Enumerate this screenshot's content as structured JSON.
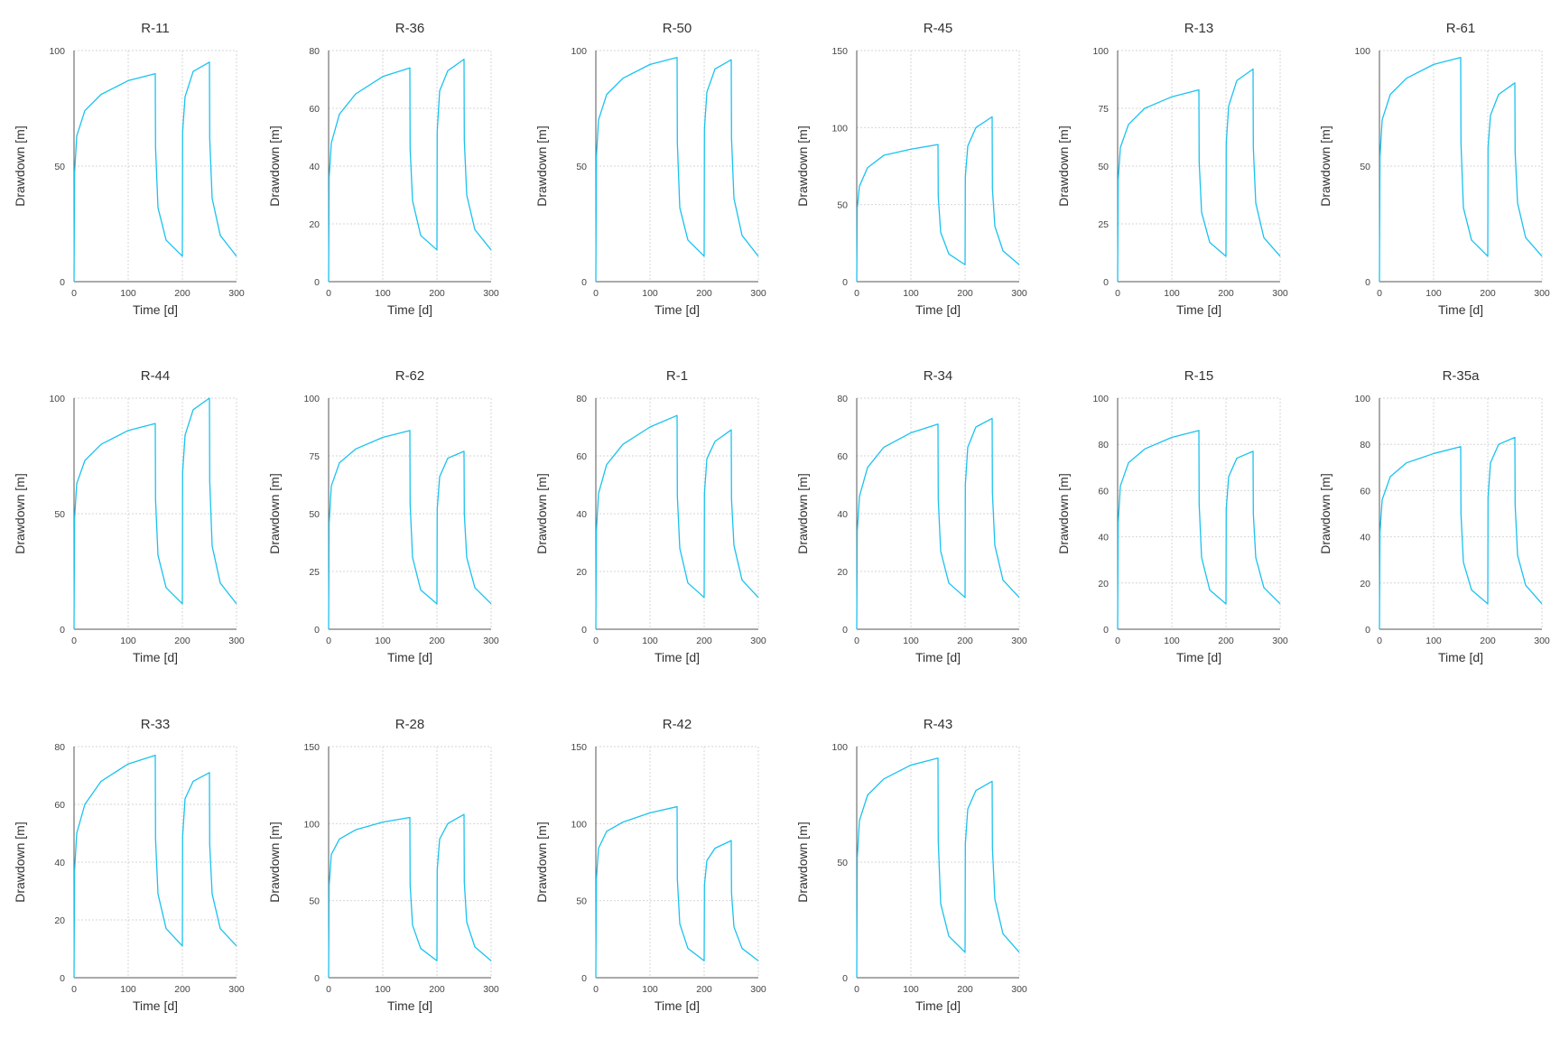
{
  "figure": {
    "line_color": "#1ac2ef",
    "grid": true,
    "layout": "3 rows x 6 columns"
  },
  "chart_data": [
    {
      "type": "line",
      "title": "R-11",
      "xlabel": "Time [d]",
      "ylabel": "Drawdown [m]",
      "xlim": [
        0,
        300
      ],
      "ylim": [
        0,
        100
      ],
      "xticks": [
        0,
        100,
        200,
        300
      ],
      "yticks": [
        0,
        50,
        100
      ],
      "series": [
        {
          "x": [
            0,
            1,
            5,
            20,
            50,
            100,
            150,
            150.5,
            155,
            170,
            200,
            200.5,
            205,
            220,
            250,
            250.5,
            255,
            270,
            300
          ],
          "y": [
            0,
            47,
            63,
            74,
            81,
            87,
            90,
            58,
            32,
            18,
            11,
            65,
            80,
            91,
            95,
            62,
            36,
            20,
            11
          ]
        }
      ]
    },
    {
      "type": "line",
      "title": "R-36",
      "xlabel": "Time [d]",
      "ylabel": "Drawdown [m]",
      "xlim": [
        0,
        300
      ],
      "ylim": [
        0,
        80
      ],
      "xticks": [
        0,
        100,
        200,
        300
      ],
      "yticks": [
        0,
        20,
        40,
        60,
        80
      ],
      "series": [
        {
          "x": [
            0,
            1,
            5,
            20,
            50,
            100,
            150,
            150.5,
            155,
            170,
            200,
            200.5,
            205,
            220,
            250,
            250.5,
            255,
            270,
            300
          ],
          "y": [
            0,
            36,
            48,
            58,
            65,
            71,
            74,
            46,
            28,
            16,
            11,
            52,
            66,
            73,
            77,
            49,
            30,
            18,
            11
          ]
        }
      ]
    },
    {
      "type": "line",
      "title": "R-50",
      "xlabel": "Time [d]",
      "ylabel": "Drawdown [m]",
      "xlim": [
        0,
        300
      ],
      "ylim": [
        0,
        100
      ],
      "xticks": [
        0,
        100,
        200,
        300
      ],
      "yticks": [
        0,
        50,
        100
      ],
      "series": [
        {
          "x": [
            0,
            1,
            5,
            20,
            50,
            100,
            150,
            150.5,
            155,
            170,
            200,
            200.5,
            205,
            220,
            250,
            250.5,
            255,
            270,
            300
          ],
          "y": [
            0,
            54,
            70,
            81,
            88,
            94,
            97,
            60,
            32,
            18,
            11,
            66,
            82,
            92,
            96,
            62,
            36,
            20,
            11
          ]
        }
      ]
    },
    {
      "type": "line",
      "title": "R-45",
      "xlabel": "Time [d]",
      "ylabel": "Drawdown [m]",
      "xlim": [
        0,
        300
      ],
      "ylim": [
        0,
        150
      ],
      "xticks": [
        0,
        100,
        200,
        300
      ],
      "yticks": [
        0,
        50,
        100,
        150
      ],
      "series": [
        {
          "x": [
            0,
            1,
            5,
            20,
            50,
            100,
            150,
            150.5,
            155,
            170,
            200,
            200.5,
            205,
            220,
            250,
            250.5,
            255,
            270,
            300
          ],
          "y": [
            0,
            48,
            62,
            74,
            82,
            86,
            89,
            55,
            32,
            18,
            11,
            68,
            88,
            100,
            107,
            60,
            36,
            20,
            11
          ]
        }
      ]
    },
    {
      "type": "line",
      "title": "R-13",
      "xlabel": "Time [d]",
      "ylabel": "Drawdown [m]",
      "xlim": [
        0,
        300
      ],
      "ylim": [
        0,
        100
      ],
      "xticks": [
        0,
        100,
        200,
        300
      ],
      "yticks": [
        0,
        25,
        50,
        75,
        100
      ],
      "series": [
        {
          "x": [
            0,
            1,
            5,
            20,
            50,
            100,
            150,
            150.5,
            155,
            170,
            200,
            200.5,
            205,
            220,
            250,
            250.5,
            255,
            270,
            300
          ],
          "y": [
            0,
            44,
            58,
            68,
            75,
            80,
            83,
            52,
            30,
            17,
            11,
            60,
            76,
            87,
            92,
            58,
            34,
            19,
            11
          ]
        }
      ]
    },
    {
      "type": "line",
      "title": "R-61",
      "xlabel": "Time [d]",
      "ylabel": "Drawdown [m]",
      "xlim": [
        0,
        300
      ],
      "ylim": [
        0,
        100
      ],
      "xticks": [
        0,
        100,
        200,
        300
      ],
      "yticks": [
        0,
        50,
        100
      ],
      "series": [
        {
          "x": [
            0,
            1,
            5,
            20,
            50,
            100,
            150,
            150.5,
            155,
            170,
            200,
            200.5,
            205,
            220,
            250,
            250.5,
            255,
            270,
            300
          ],
          "y": [
            0,
            54,
            70,
            81,
            88,
            94,
            97,
            60,
            32,
            18,
            11,
            58,
            72,
            81,
            86,
            56,
            34,
            19,
            11
          ]
        }
      ]
    },
    {
      "type": "line",
      "title": "R-44",
      "xlabel": "Time [d]",
      "ylabel": "Drawdown [m]",
      "xlim": [
        0,
        300
      ],
      "ylim": [
        0,
        100
      ],
      "xticks": [
        0,
        100,
        200,
        300
      ],
      "yticks": [
        0,
        50,
        100
      ],
      "series": [
        {
          "x": [
            0,
            1,
            5,
            20,
            50,
            100,
            150,
            150.5,
            155,
            170,
            200,
            200.5,
            205,
            220,
            250,
            250.5,
            255,
            270,
            300
          ],
          "y": [
            0,
            48,
            63,
            73,
            80,
            86,
            89,
            56,
            32,
            18,
            11,
            68,
            84,
            95,
            100,
            64,
            36,
            20,
            11
          ]
        }
      ]
    },
    {
      "type": "line",
      "title": "R-62",
      "xlabel": "Time [d]",
      "ylabel": "Drawdown [m]",
      "xlim": [
        0,
        300
      ],
      "ylim": [
        0,
        100
      ],
      "xticks": [
        0,
        100,
        200,
        300
      ],
      "yticks": [
        0,
        25,
        50,
        75,
        100
      ],
      "series": [
        {
          "x": [
            0,
            1,
            5,
            20,
            50,
            100,
            150,
            150.5,
            155,
            170,
            200,
            200.5,
            205,
            220,
            250,
            250.5,
            255,
            270,
            300
          ],
          "y": [
            0,
            46,
            62,
            72,
            78,
            83,
            86,
            54,
            31,
            17,
            11,
            52,
            66,
            74,
            77,
            50,
            31,
            18,
            11
          ]
        }
      ]
    },
    {
      "type": "line",
      "title": "R-1",
      "xlabel": "Time [d]",
      "ylabel": "Drawdown [m]",
      "xlim": [
        0,
        300
      ],
      "ylim": [
        0,
        80
      ],
      "xticks": [
        0,
        100,
        200,
        300
      ],
      "yticks": [
        0,
        20,
        40,
        60,
        80
      ],
      "series": [
        {
          "x": [
            0,
            1,
            5,
            20,
            50,
            100,
            150,
            150.5,
            155,
            170,
            200,
            200.5,
            205,
            220,
            250,
            250.5,
            255,
            270,
            300
          ],
          "y": [
            0,
            34,
            47,
            57,
            64,
            70,
            74,
            46,
            28,
            16,
            11,
            47,
            59,
            65,
            69,
            45,
            29,
            17,
            11
          ]
        }
      ]
    },
    {
      "type": "line",
      "title": "R-34",
      "xlabel": "Time [d]",
      "ylabel": "Drawdown [m]",
      "xlim": [
        0,
        300
      ],
      "ylim": [
        0,
        80
      ],
      "xticks": [
        0,
        100,
        200,
        300
      ],
      "yticks": [
        0,
        20,
        40,
        60,
        80
      ],
      "series": [
        {
          "x": [
            0,
            1,
            5,
            20,
            50,
            100,
            150,
            150.5,
            155,
            170,
            200,
            200.5,
            205,
            220,
            250,
            250.5,
            255,
            270,
            300
          ],
          "y": [
            0,
            34,
            46,
            56,
            63,
            68,
            71,
            45,
            27,
            16,
            11,
            50,
            63,
            70,
            73,
            47,
            29,
            17,
            11
          ]
        }
      ]
    },
    {
      "type": "line",
      "title": "R-15",
      "xlabel": "Time [d]",
      "ylabel": "Drawdown [m]",
      "xlim": [
        0,
        300
      ],
      "ylim": [
        0,
        100
      ],
      "xticks": [
        0,
        100,
        200,
        300
      ],
      "yticks": [
        0,
        20,
        40,
        60,
        80,
        100
      ],
      "series": [
        {
          "x": [
            0,
            1,
            5,
            20,
            50,
            100,
            150,
            150.5,
            155,
            170,
            200,
            200.5,
            205,
            220,
            250,
            250.5,
            255,
            270,
            300
          ],
          "y": [
            0,
            46,
            62,
            72,
            78,
            83,
            86,
            54,
            31,
            17,
            11,
            52,
            66,
            74,
            77,
            50,
            31,
            18,
            11
          ]
        }
      ]
    },
    {
      "type": "line",
      "title": "R-35a",
      "xlabel": "Time [d]",
      "ylabel": "Drawdown [m]",
      "xlim": [
        0,
        300
      ],
      "ylim": [
        0,
        100
      ],
      "xticks": [
        0,
        100,
        200,
        300
      ],
      "yticks": [
        0,
        20,
        40,
        60,
        80,
        100
      ],
      "series": [
        {
          "x": [
            0,
            1,
            5,
            20,
            50,
            100,
            150,
            150.5,
            155,
            170,
            200,
            200.5,
            205,
            220,
            250,
            250.5,
            255,
            270,
            300
          ],
          "y": [
            0,
            42,
            56,
            66,
            72,
            76,
            79,
            50,
            29,
            17,
            11,
            57,
            72,
            80,
            83,
            54,
            32,
            19,
            11
          ]
        }
      ]
    },
    {
      "type": "line",
      "title": "R-33",
      "xlabel": "Time [d]",
      "ylabel": "Drawdown [m]",
      "xlim": [
        0,
        300
      ],
      "ylim": [
        0,
        80
      ],
      "xticks": [
        0,
        100,
        200,
        300
      ],
      "yticks": [
        0,
        20,
        40,
        60,
        80
      ],
      "series": [
        {
          "x": [
            0,
            1,
            5,
            20,
            50,
            100,
            150,
            150.5,
            155,
            170,
            200,
            200.5,
            205,
            220,
            250,
            250.5,
            255,
            270,
            300
          ],
          "y": [
            0,
            37,
            50,
            60,
            68,
            74,
            77,
            48,
            29,
            17,
            11,
            49,
            62,
            68,
            71,
            46,
            29,
            17,
            11
          ]
        }
      ]
    },
    {
      "type": "line",
      "title": "R-28",
      "xlabel": "Time [d]",
      "ylabel": "Drawdown [m]",
      "xlim": [
        0,
        300
      ],
      "ylim": [
        0,
        150
      ],
      "xticks": [
        0,
        100,
        200,
        300
      ],
      "yticks": [
        0,
        50,
        100,
        150
      ],
      "series": [
        {
          "x": [
            0,
            1,
            5,
            20,
            50,
            100,
            150,
            150.5,
            155,
            170,
            200,
            200.5,
            205,
            220,
            250,
            250.5,
            255,
            270,
            300
          ],
          "y": [
            0,
            60,
            80,
            90,
            96,
            101,
            104,
            60,
            34,
            19,
            11,
            70,
            90,
            100,
            106,
            62,
            36,
            20,
            11
          ]
        }
      ]
    },
    {
      "type": "line",
      "title": "R-42",
      "xlabel": "Time [d]",
      "ylabel": "Drawdown [m]",
      "xlim": [
        0,
        300
      ],
      "ylim": [
        0,
        150
      ],
      "xticks": [
        0,
        100,
        200,
        300
      ],
      "yticks": [
        0,
        50,
        100,
        150
      ],
      "series": [
        {
          "x": [
            0,
            1,
            5,
            20,
            50,
            100,
            150,
            150.5,
            155,
            170,
            200,
            200.5,
            205,
            220,
            250,
            250.5,
            255,
            270,
            300
          ],
          "y": [
            0,
            64,
            84,
            95,
            101,
            107,
            111,
            64,
            35,
            19,
            11,
            60,
            76,
            84,
            89,
            55,
            33,
            19,
            11
          ]
        }
      ]
    },
    {
      "type": "line",
      "title": "R-43",
      "xlabel": "Time [d]",
      "ylabel": "Drawdown [m]",
      "xlim": [
        0,
        300
      ],
      "ylim": [
        0,
        100
      ],
      "xticks": [
        0,
        100,
        200,
        300
      ],
      "yticks": [
        0,
        50,
        100
      ],
      "series": [
        {
          "x": [
            0,
            1,
            5,
            20,
            50,
            100,
            150,
            150.5,
            155,
            170,
            200,
            200.5,
            205,
            220,
            250,
            250.5,
            255,
            270,
            300
          ],
          "y": [
            0,
            52,
            68,
            79,
            86,
            92,
            95,
            59,
            32,
            18,
            11,
            58,
            73,
            81,
            85,
            56,
            34,
            19,
            11
          ]
        }
      ]
    }
  ]
}
